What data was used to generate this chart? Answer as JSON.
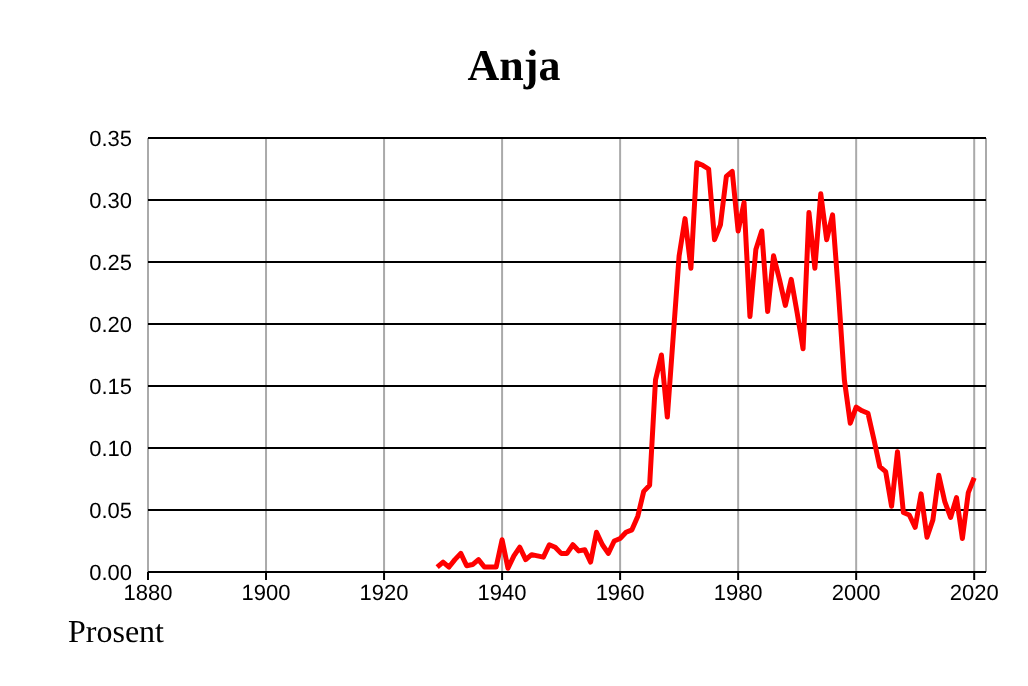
{
  "chart_data": {
    "type": "line",
    "title": "Anja",
    "ylabel": "Prosent",
    "x": [
      1929,
      1930,
      1931,
      1932,
      1933,
      1934,
      1935,
      1936,
      1937,
      1938,
      1939,
      1940,
      1941,
      1942,
      1943,
      1944,
      1945,
      1946,
      1947,
      1948,
      1949,
      1950,
      1951,
      1952,
      1953,
      1954,
      1955,
      1956,
      1957,
      1958,
      1959,
      1960,
      1961,
      1962,
      1963,
      1964,
      1965,
      1966,
      1967,
      1968,
      1969,
      1970,
      1971,
      1972,
      1973,
      1974,
      1975,
      1976,
      1977,
      1978,
      1979,
      1980,
      1981,
      1982,
      1983,
      1984,
      1985,
      1986,
      1987,
      1988,
      1989,
      1990,
      1991,
      1992,
      1993,
      1994,
      1995,
      1996,
      1997,
      1998,
      1999,
      2000,
      2001,
      2002,
      2003,
      2004,
      2005,
      2006,
      2007,
      2008,
      2009,
      2010,
      2011,
      2012,
      2013,
      2014,
      2015,
      2016,
      2017,
      2018,
      2019,
      2020
    ],
    "series": [
      {
        "color": "#ff0000",
        "values": [
          0.004,
          0.008,
          0.004,
          0.01,
          0.015,
          0.005,
          0.006,
          0.01,
          0.004,
          0.004,
          0.004,
          0.026,
          0.003,
          0.013,
          0.02,
          0.01,
          0.014,
          0.013,
          0.012,
          0.022,
          0.02,
          0.015,
          0.015,
          0.022,
          0.017,
          0.018,
          0.008,
          0.032,
          0.022,
          0.015,
          0.025,
          0.027,
          0.032,
          0.034,
          0.045,
          0.065,
          0.07,
          0.155,
          0.175,
          0.125,
          0.19,
          0.255,
          0.285,
          0.245,
          0.33,
          0.328,
          0.325,
          0.268,
          0.28,
          0.319,
          0.323,
          0.275,
          0.298,
          0.206,
          0.26,
          0.275,
          0.21,
          0.255,
          0.236,
          0.215,
          0.236,
          0.209,
          0.18,
          0.29,
          0.245,
          0.305,
          0.268,
          0.288,
          0.225,
          0.155,
          0.12,
          0.133,
          0.13,
          0.128,
          0.107,
          0.085,
          0.081,
          0.053,
          0.097,
          0.048,
          0.046,
          0.036,
          0.063,
          0.028,
          0.042,
          0.078,
          0.057,
          0.044,
          0.06,
          0.027,
          0.064,
          0.076
        ]
      }
    ],
    "xlim": [
      1880,
      2022
    ],
    "xticks": [
      1880,
      1900,
      1920,
      1940,
      1960,
      1980,
      2000,
      2020
    ],
    "ylim": [
      0,
      0.35
    ],
    "yticks": [
      {
        "value": 0,
        "label": "0.00"
      },
      {
        "value": 0.05,
        "label": "0.05"
      },
      {
        "value": 0.1,
        "label": "0.10"
      },
      {
        "value": 0.15,
        "label": "0.15"
      },
      {
        "value": 0.2,
        "label": "0.20"
      },
      {
        "value": 0.25,
        "label": "0.25"
      },
      {
        "value": 0.3,
        "label": "0.30"
      },
      {
        "value": 0.35,
        "label": "0.35"
      }
    ],
    "grid": true,
    "marker": "none",
    "line_style": "solid",
    "legend": false
  }
}
